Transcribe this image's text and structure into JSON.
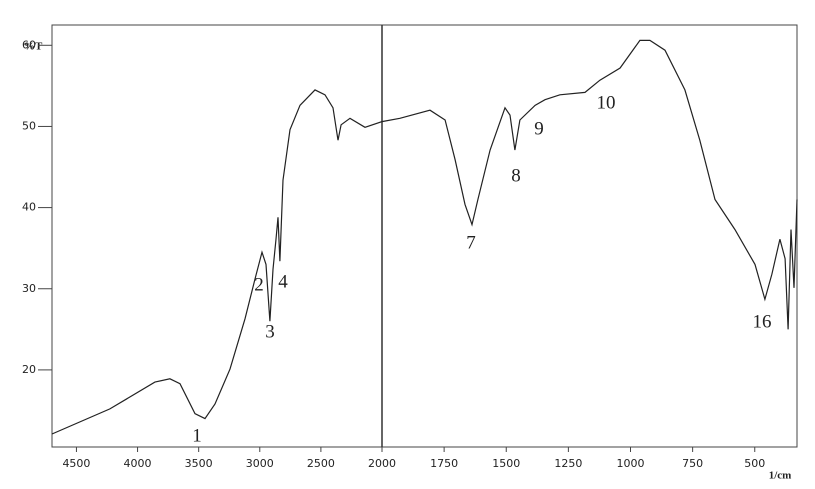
{
  "chart_data": {
    "type": "line",
    "y_label": "%T",
    "x_label": "1/cm",
    "xlim": [
      4700,
      330
    ],
    "x_break": 2000,
    "ylim": [
      10.5,
      62.5
    ],
    "yticks": [
      20,
      30,
      40,
      50,
      60
    ],
    "xticks": [
      4500,
      4000,
      3500,
      3000,
      2500,
      2000,
      1750,
      1500,
      1250,
      1000,
      750,
      500
    ],
    "color": "#222222",
    "x": [
      4700,
      4226,
      3858,
      3735,
      3653,
      3530,
      3448,
      3366,
      3244,
      3121,
      3039,
      2982,
      2949,
      2917,
      2892,
      2867,
      2851,
      2835,
      2810,
      2753,
      2671,
      2548,
      2466,
      2401,
      2360,
      2335,
      2262,
      2139,
      2000,
      1928,
      1807,
      1746,
      1706,
      1666,
      1638,
      1614,
      1565,
      1505,
      1485,
      1465,
      1445,
      1384,
      1344,
      1284,
      1183,
      1123,
      1042,
      962,
      922,
      861,
      781,
      721,
      660,
      580,
      499,
      459,
      431,
      399,
      378,
      366,
      354,
      342,
      330
    ],
    "values": [
      12.1,
      15.2,
      18.5,
      18.9,
      18.3,
      14.6,
      14.0,
      15.8,
      20.1,
      26.3,
      31.2,
      34.5,
      33.0,
      26.0,
      32.4,
      36.1,
      38.8,
      33.4,
      43.4,
      49.6,
      52.6,
      54.5,
      53.9,
      52.3,
      48.3,
      50.2,
      51.0,
      49.9,
      50.6,
      51.0,
      52.0,
      50.8,
      45.9,
      40.4,
      37.9,
      41.0,
      47.1,
      52.3,
      51.4,
      47.1,
      50.8,
      52.6,
      53.3,
      53.9,
      54.2,
      55.7,
      57.2,
      60.6,
      60.6,
      59.4,
      54.5,
      48.3,
      41.0,
      37.3,
      33.0,
      28.7,
      31.8,
      36.1,
      33.7,
      25.0,
      37.3,
      30.1,
      41.0
    ],
    "annotations": [
      "1",
      "2",
      "3",
      "4",
      "7",
      "8",
      "9",
      "10",
      "16"
    ]
  }
}
